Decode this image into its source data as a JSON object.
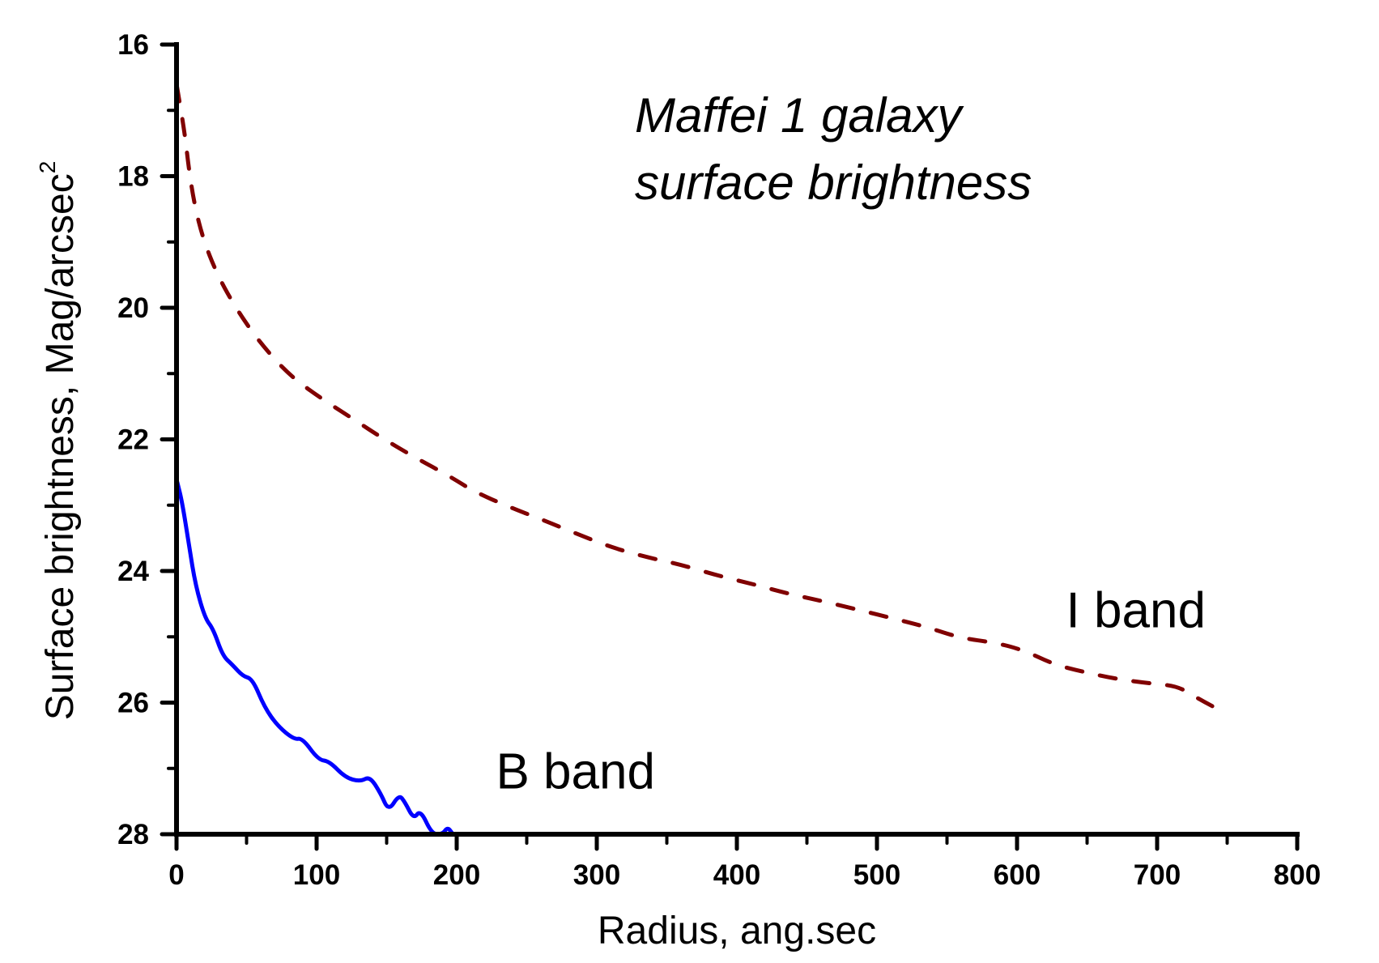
{
  "chart_data": {
    "type": "line",
    "title": "Maffei 1 galaxy surface brightness",
    "title_lines": [
      "Maffei 1 galaxy",
      "surface brightness"
    ],
    "xlabel": "Radius, ang.sec",
    "ylabel": "Surface brightness, Mag/arcsec",
    "ylabel_superscript": "2",
    "xlim": [
      0,
      800
    ],
    "ylim": [
      16,
      28
    ],
    "y_inverted": true,
    "grid": false,
    "legend": "none (inline series labels)",
    "x_ticks": [
      0,
      100,
      200,
      300,
      400,
      500,
      600,
      700,
      800
    ],
    "x_tick_labels": [
      "0",
      "100",
      "200",
      "300",
      "400",
      "500",
      "600",
      "700",
      "800"
    ],
    "x_minor_ticks": [
      50,
      150,
      250,
      350,
      450,
      550,
      650,
      750
    ],
    "y_ticks": [
      16,
      18,
      20,
      22,
      24,
      26,
      28
    ],
    "y_tick_labels": [
      "16",
      "18",
      "20",
      "22",
      "24",
      "26",
      "28"
    ],
    "y_minor_ticks": [
      17,
      19,
      21,
      23,
      25,
      27
    ],
    "series": [
      {
        "name": "I band",
        "label": "I band",
        "color": "#800000",
        "style": "dashed",
        "x": [
          0.2,
          6,
          8.9,
          12.7,
          18.9,
          28.5,
          41.6,
          58,
          79.2,
          101.3,
          125.4,
          147.6,
          170.7,
          195,
          213,
          237.8,
          262.2,
          286.3,
          310.4,
          335.4,
          359.5,
          386.5,
          413.5,
          437.6,
          461.7,
          486.7,
          511.4,
          535.3,
          560,
          584.6,
          604.2,
          626.4,
          646.6,
          670.7,
          695.8,
          715,
          730,
          750
        ],
        "y": [
          16.62,
          17.37,
          17.91,
          18.42,
          18.95,
          19.47,
          19.98,
          20.49,
          21.0,
          21.35,
          21.68,
          21.99,
          22.28,
          22.56,
          22.8,
          23.03,
          23.23,
          23.44,
          23.64,
          23.79,
          23.9,
          24.07,
          24.21,
          24.35,
          24.46,
          24.59,
          24.72,
          24.85,
          25.02,
          25.09,
          25.2,
          25.42,
          25.53,
          25.64,
          25.71,
          25.75,
          25.95,
          26.17
        ]
      },
      {
        "name": "B band",
        "label": "B band",
        "color": "#0000FF",
        "style": "solid",
        "x": [
          0.5,
          4,
          8.9,
          13.7,
          20.4,
          26.2,
          33,
          39.7,
          47.4,
          54.2,
          62.8,
          72.4,
          84,
          89.8,
          101.3,
          109,
          120.6,
          131.2,
          138,
          145.7,
          151.4,
          158.8,
          163,
          169.2,
          174.2,
          182.3,
          190,
          193.5,
          197.3
        ],
        "y": [
          22.65,
          22.95,
          23.61,
          24.23,
          24.72,
          24.88,
          25.29,
          25.42,
          25.6,
          25.64,
          26.07,
          26.36,
          26.56,
          26.54,
          26.87,
          26.89,
          27.14,
          27.2,
          27.12,
          27.38,
          27.65,
          27.4,
          27.51,
          27.77,
          27.63,
          28.0,
          28.0,
          27.89,
          28.0
        ]
      }
    ],
    "annotations": [
      {
        "text": "I band",
        "x": 635,
        "y": 25.1
      },
      {
        "text": "B band",
        "x": 228,
        "y": 27.45
      }
    ]
  }
}
